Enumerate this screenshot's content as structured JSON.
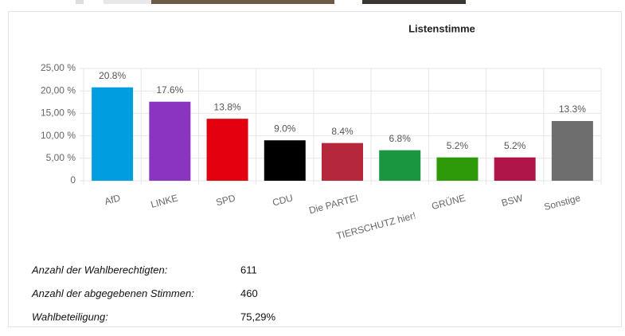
{
  "chart_data": {
    "type": "bar",
    "title": "Listenstimme",
    "categories": [
      "AfD",
      "LINKE",
      "SPD",
      "CDU",
      "Die PARTEI",
      "TIERSCHUTZ hier!",
      "GRÜNE",
      "BSW",
      "Sonstige"
    ],
    "values": [
      20.8,
      17.6,
      13.8,
      9.0,
      8.4,
      6.8,
      5.2,
      5.2,
      13.3
    ],
    "value_labels": [
      "20.8%",
      "17.6%",
      "13.8%",
      "9.0%",
      "8.4%",
      "6.8%",
      "5.2%",
      "5.2%",
      "13.3%"
    ],
    "colors": [
      "#009ee0",
      "#8a35c2",
      "#e3000f",
      "#000000",
      "#b5283b",
      "#1a9641",
      "#2e9a0a",
      "#b0154a",
      "#6e6e6e"
    ],
    "ylim": [
      0,
      25
    ],
    "yticks": [
      0,
      {
        "value": 5,
        "label": "5,00 %"
      },
      {
        "value": 10,
        "label": "10,00 %"
      },
      {
        "value": 15,
        "label": "15,00 %"
      },
      {
        "value": 20,
        "label": "20,00 %"
      },
      {
        "value": 25,
        "label": "25,00 %"
      }
    ],
    "grid": true
  },
  "stats": [
    {
      "label": "Anzahl der Wahlberechtigten:",
      "value": 611
    },
    {
      "label": "Anzahl der abgegebenen Stimmen:",
      "value": 460
    },
    {
      "label": "Wahlbeteiligung:",
      "value": "75,29%"
    }
  ]
}
